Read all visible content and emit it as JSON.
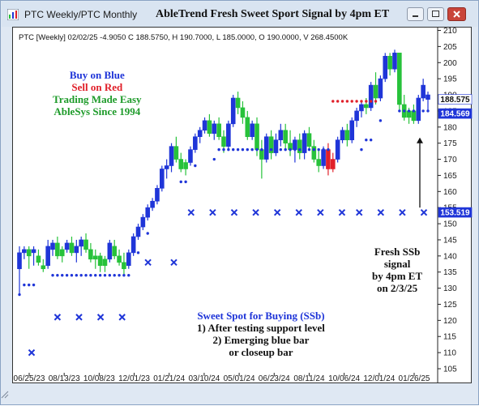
{
  "window": {
    "title": "PTC Weekly/PTC Monthly",
    "chart_title": "AbleTrend Fresh Sweet Sport Signal by 4pm ET"
  },
  "info_line": "PTC [Weekly] 02/02/25  -4.9050 C 188.5750, H 190.7000, L 185.0000, O 190.0000, V 268.4500K",
  "legend_note": {
    "line1": "Buy on Blue",
    "line2": "Sell on Red",
    "line3": "Trading Made Easy",
    "line4": "AbleSys Since 1994"
  },
  "ssb_note": {
    "line1": "Sweet Spot for Buying (SSb)",
    "line2": "1) After testing support level",
    "line3": "2) Emerging blue bar",
    "line4": "or closeup bar"
  },
  "fresh_note": {
    "line1": "Fresh SSb",
    "line2": "signal",
    "line3": "by 4pm ET",
    "line4": "on 2/3/25"
  },
  "price_tags": {
    "close": "188.575",
    "upper": "184.569",
    "stop": "153.519"
  },
  "colors": {
    "blue": "#1f35d8",
    "green": "#27c23a",
    "red": "#e0202a",
    "axis": "#222222"
  },
  "chart_data": {
    "type": "candlestick",
    "ylim": [
      105,
      210
    ],
    "yticks": [
      105,
      110,
      115,
      120,
      125,
      130,
      135,
      140,
      145,
      150,
      155,
      160,
      165,
      170,
      175,
      180,
      185,
      190,
      195,
      200,
      205,
      210
    ],
    "xticks": [
      "06/25/23",
      "08/13/23",
      "10/08/23",
      "12/01/23",
      "01/21/24",
      "03/10/24",
      "05/01/24",
      "06/23/24",
      "08/11/24",
      "10/06/24",
      "12/01/24",
      "01/26/25"
    ],
    "bars": [
      {
        "o": 136,
        "h": 143,
        "l": 128,
        "c": 141,
        "color": "blue"
      },
      {
        "o": 141,
        "h": 143,
        "l": 139,
        "c": 142,
        "color": "blue"
      },
      {
        "o": 140,
        "h": 143,
        "l": 136,
        "c": 142,
        "color": "green"
      },
      {
        "o": 141,
        "h": 143,
        "l": 137,
        "c": 142,
        "color": "blue"
      },
      {
        "o": 140,
        "h": 142,
        "l": 137,
        "c": 138,
        "color": "green"
      },
      {
        "o": 137,
        "h": 139,
        "l": 135,
        "c": 136,
        "color": "green"
      },
      {
        "o": 137,
        "h": 145,
        "l": 136,
        "c": 143,
        "color": "blue"
      },
      {
        "o": 142,
        "h": 145,
        "l": 140,
        "c": 144,
        "color": "blue"
      },
      {
        "o": 144,
        "h": 146,
        "l": 139,
        "c": 140,
        "color": "green"
      },
      {
        "o": 140,
        "h": 143,
        "l": 138,
        "c": 142,
        "color": "green"
      },
      {
        "o": 142,
        "h": 145,
        "l": 141,
        "c": 144,
        "color": "blue"
      },
      {
        "o": 144,
        "h": 146,
        "l": 140,
        "c": 141,
        "color": "green"
      },
      {
        "o": 141,
        "h": 145,
        "l": 138,
        "c": 143,
        "color": "blue"
      },
      {
        "o": 143,
        "h": 146,
        "l": 140,
        "c": 145,
        "color": "blue"
      },
      {
        "o": 145,
        "h": 147,
        "l": 141,
        "c": 142,
        "color": "green"
      },
      {
        "o": 142,
        "h": 144,
        "l": 138,
        "c": 139,
        "color": "green"
      },
      {
        "o": 139,
        "h": 142,
        "l": 136,
        "c": 140,
        "color": "green"
      },
      {
        "o": 140,
        "h": 141,
        "l": 135,
        "c": 137,
        "color": "green"
      },
      {
        "o": 137,
        "h": 140,
        "l": 135,
        "c": 139,
        "color": "green"
      },
      {
        "o": 139,
        "h": 145,
        "l": 138,
        "c": 144,
        "color": "blue"
      },
      {
        "o": 143,
        "h": 145,
        "l": 139,
        "c": 140,
        "color": "green"
      },
      {
        "o": 140,
        "h": 142,
        "l": 137,
        "c": 138,
        "color": "green"
      },
      {
        "o": 138,
        "h": 141,
        "l": 134,
        "c": 136,
        "color": "green"
      },
      {
        "o": 137,
        "h": 142,
        "l": 136,
        "c": 141,
        "color": "blue"
      },
      {
        "o": 141,
        "h": 147,
        "l": 140,
        "c": 146,
        "color": "blue"
      },
      {
        "o": 146,
        "h": 150,
        "l": 145,
        "c": 149,
        "color": "blue"
      },
      {
        "o": 149,
        "h": 153,
        "l": 148,
        "c": 152,
        "color": "blue"
      },
      {
        "o": 152,
        "h": 156,
        "l": 151,
        "c": 155,
        "color": "blue"
      },
      {
        "o": 155,
        "h": 158,
        "l": 154,
        "c": 157,
        "color": "blue"
      },
      {
        "o": 157,
        "h": 162,
        "l": 156,
        "c": 161,
        "color": "blue"
      },
      {
        "o": 161,
        "h": 168,
        "l": 160,
        "c": 167,
        "color": "blue"
      },
      {
        "o": 167,
        "h": 170,
        "l": 164,
        "c": 168,
        "color": "blue"
      },
      {
        "o": 168,
        "h": 175,
        "l": 166,
        "c": 174,
        "color": "blue"
      },
      {
        "o": 174,
        "h": 177,
        "l": 169,
        "c": 170,
        "color": "green"
      },
      {
        "o": 170,
        "h": 172,
        "l": 166,
        "c": 167,
        "color": "green"
      },
      {
        "o": 167,
        "h": 170,
        "l": 165,
        "c": 169,
        "color": "green"
      },
      {
        "o": 169,
        "h": 174,
        "l": 168,
        "c": 173,
        "color": "blue"
      },
      {
        "o": 173,
        "h": 178,
        "l": 172,
        "c": 177,
        "color": "blue"
      },
      {
        "o": 177,
        "h": 180,
        "l": 175,
        "c": 179,
        "color": "blue"
      },
      {
        "o": 179,
        "h": 183,
        "l": 178,
        "c": 182,
        "color": "blue"
      },
      {
        "o": 182,
        "h": 184,
        "l": 177,
        "c": 178,
        "color": "green"
      },
      {
        "o": 178,
        "h": 182,
        "l": 176,
        "c": 181,
        "color": "blue"
      },
      {
        "o": 181,
        "h": 183,
        "l": 176,
        "c": 177,
        "color": "green"
      },
      {
        "o": 177,
        "h": 179,
        "l": 172,
        "c": 174,
        "color": "green"
      },
      {
        "o": 174,
        "h": 182,
        "l": 173,
        "c": 181,
        "color": "blue"
      },
      {
        "o": 181,
        "h": 190,
        "l": 180,
        "c": 189,
        "color": "blue"
      },
      {
        "o": 189,
        "h": 191,
        "l": 184,
        "c": 186,
        "color": "green"
      },
      {
        "o": 186,
        "h": 188,
        "l": 181,
        "c": 183,
        "color": "green"
      },
      {
        "o": 183,
        "h": 185,
        "l": 176,
        "c": 177,
        "color": "green"
      },
      {
        "o": 177,
        "h": 182,
        "l": 176,
        "c": 181,
        "color": "blue"
      },
      {
        "o": 181,
        "h": 183,
        "l": 171,
        "c": 173,
        "color": "green"
      },
      {
        "o": 173,
        "h": 176,
        "l": 164,
        "c": 170,
        "color": "green"
      },
      {
        "o": 170,
        "h": 178,
        "l": 169,
        "c": 177,
        "color": "blue"
      },
      {
        "o": 177,
        "h": 179,
        "l": 170,
        "c": 172,
        "color": "green"
      },
      {
        "o": 172,
        "h": 178,
        "l": 171,
        "c": 176,
        "color": "blue"
      },
      {
        "o": 176,
        "h": 181,
        "l": 174,
        "c": 179,
        "color": "blue"
      },
      {
        "o": 179,
        "h": 181,
        "l": 173,
        "c": 175,
        "color": "green"
      },
      {
        "o": 175,
        "h": 179,
        "l": 171,
        "c": 173,
        "color": "green"
      },
      {
        "o": 173,
        "h": 177,
        "l": 169,
        "c": 176,
        "color": "blue"
      },
      {
        "o": 176,
        "h": 178,
        "l": 170,
        "c": 172,
        "color": "green"
      },
      {
        "o": 172,
        "h": 179,
        "l": 170,
        "c": 178,
        "color": "blue"
      },
      {
        "o": 178,
        "h": 180,
        "l": 173,
        "c": 174,
        "color": "green"
      },
      {
        "o": 174,
        "h": 176,
        "l": 169,
        "c": 170,
        "color": "green"
      },
      {
        "o": 170,
        "h": 173,
        "l": 166,
        "c": 168,
        "color": "green"
      },
      {
        "o": 168,
        "h": 174,
        "l": 167,
        "c": 173,
        "color": "blue"
      },
      {
        "o": 173,
        "h": 175,
        "l": 165,
        "c": 167,
        "color": "red"
      },
      {
        "o": 167,
        "h": 172,
        "l": 166,
        "c": 170,
        "color": "red"
      },
      {
        "o": 170,
        "h": 177,
        "l": 169,
        "c": 176,
        "color": "blue"
      },
      {
        "o": 176,
        "h": 180,
        "l": 175,
        "c": 179,
        "color": "blue"
      },
      {
        "o": 179,
        "h": 181,
        "l": 174,
        "c": 176,
        "color": "green"
      },
      {
        "o": 176,
        "h": 183,
        "l": 175,
        "c": 182,
        "color": "blue"
      },
      {
        "o": 182,
        "h": 186,
        "l": 180,
        "c": 185,
        "color": "blue"
      },
      {
        "o": 185,
        "h": 188,
        "l": 183,
        "c": 187,
        "color": "blue"
      },
      {
        "o": 187,
        "h": 189,
        "l": 184,
        "c": 186,
        "color": "green"
      },
      {
        "o": 186,
        "h": 194,
        "l": 185,
        "c": 193,
        "color": "blue"
      },
      {
        "o": 193,
        "h": 197,
        "l": 187,
        "c": 189,
        "color": "green"
      },
      {
        "o": 189,
        "h": 196,
        "l": 188,
        "c": 195,
        "color": "blue"
      },
      {
        "o": 195,
        "h": 203,
        "l": 194,
        "c": 202,
        "color": "blue"
      },
      {
        "o": 202,
        "h": 203,
        "l": 196,
        "c": 198,
        "color": "green"
      },
      {
        "o": 198,
        "h": 204,
        "l": 197,
        "c": 203,
        "color": "blue"
      },
      {
        "o": 203,
        "h": 203,
        "l": 185,
        "c": 187,
        "color": "green"
      },
      {
        "o": 187,
        "h": 190,
        "l": 182,
        "c": 183,
        "color": "green"
      },
      {
        "o": 183,
        "h": 186,
        "l": 181,
        "c": 185,
        "color": "green"
      },
      {
        "o": 185,
        "h": 187,
        "l": 181,
        "c": 182,
        "color": "green"
      },
      {
        "o": 182,
        "h": 190,
        "l": 181,
        "c": 189,
        "color": "blue"
      },
      {
        "o": 189,
        "h": 195,
        "l": 188,
        "c": 193,
        "color": "blue"
      },
      {
        "o": 190,
        "h": 191,
        "l": 185,
        "c": 188.575,
        "color": "blue"
      }
    ],
    "support_dots": [
      {
        "i": 0,
        "v": 128
      },
      {
        "i": 1,
        "v": 131
      },
      {
        "i": 2,
        "v": 131
      },
      {
        "i": 3,
        "v": 131
      },
      {
        "i": 7,
        "v": 134
      },
      {
        "i": 8,
        "v": 134
      },
      {
        "i": 9,
        "v": 134
      },
      {
        "i": 10,
        "v": 134
      },
      {
        "i": 11,
        "v": 134
      },
      {
        "i": 12,
        "v": 134
      },
      {
        "i": 13,
        "v": 134
      },
      {
        "i": 14,
        "v": 134
      },
      {
        "i": 15,
        "v": 134
      },
      {
        "i": 16,
        "v": 134
      },
      {
        "i": 17,
        "v": 134
      },
      {
        "i": 18,
        "v": 134
      },
      {
        "i": 19,
        "v": 134
      },
      {
        "i": 20,
        "v": 134
      },
      {
        "i": 21,
        "v": 134
      },
      {
        "i": 22,
        "v": 134
      },
      {
        "i": 23,
        "v": 134
      },
      {
        "i": 25,
        "v": 141
      },
      {
        "i": 27,
        "v": 147
      },
      {
        "i": 34,
        "v": 163
      },
      {
        "i": 35,
        "v": 163
      },
      {
        "i": 37,
        "v": 168
      },
      {
        "i": 41,
        "v": 170
      },
      {
        "i": 42,
        "v": 173
      },
      {
        "i": 43,
        "v": 173
      },
      {
        "i": 44,
        "v": 173
      },
      {
        "i": 45,
        "v": 173
      },
      {
        "i": 46,
        "v": 173
      },
      {
        "i": 47,
        "v": 173
      },
      {
        "i": 48,
        "v": 173
      },
      {
        "i": 49,
        "v": 173
      },
      {
        "i": 50,
        "v": 173
      },
      {
        "i": 51,
        "v": 173
      },
      {
        "i": 52,
        "v": 173
      },
      {
        "i": 53,
        "v": 173
      },
      {
        "i": 54,
        "v": 173
      },
      {
        "i": 55,
        "v": 173
      },
      {
        "i": 56,
        "v": 173
      },
      {
        "i": 57,
        "v": 173
      },
      {
        "i": 58,
        "v": 173
      },
      {
        "i": 59,
        "v": 173
      },
      {
        "i": 60,
        "v": 173
      },
      {
        "i": 61,
        "v": 173
      },
      {
        "i": 62,
        "v": 173
      },
      {
        "i": 63,
        "v": 173
      },
      {
        "i": 64,
        "v": 173
      },
      {
        "i": 65,
        "v": 173
      },
      {
        "i": 72,
        "v": 173
      },
      {
        "i": 73,
        "v": 176
      },
      {
        "i": 74,
        "v": 176
      },
      {
        "i": 76,
        "v": 182
      },
      {
        "i": 80,
        "v": 185
      },
      {
        "i": 81,
        "v": 185
      },
      {
        "i": 82,
        "v": 185
      },
      {
        "i": 83,
        "v": 185
      },
      {
        "i": 84,
        "v": 185
      },
      {
        "i": 85,
        "v": 185
      },
      {
        "i": 86,
        "v": 185
      }
    ],
    "resistance_dots": [
      {
        "i": 66,
        "v": 188
      },
      {
        "i": 67,
        "v": 188
      },
      {
        "i": 68,
        "v": 188
      },
      {
        "i": 69,
        "v": 188
      },
      {
        "i": 70,
        "v": 188
      },
      {
        "i": 71,
        "v": 188
      },
      {
        "i": 72,
        "v": 188
      },
      {
        "i": 73,
        "v": 188
      },
      {
        "i": 74,
        "v": 188
      },
      {
        "i": 75,
        "v": 188
      }
    ],
    "stop_marks": [
      {
        "i": 4,
        "v": 110
      },
      {
        "i": 10,
        "v": 121
      },
      {
        "i": 15,
        "v": 121
      },
      {
        "i": 20,
        "v": 121
      },
      {
        "i": 25,
        "v": 121
      },
      {
        "i": 31,
        "v": 138
      },
      {
        "i": 37,
        "v": 138
      },
      {
        "i": 41,
        "v": 153.5
      },
      {
        "i": 46,
        "v": 153.5
      },
      {
        "i": 51,
        "v": 153.5
      },
      {
        "i": 56,
        "v": 153.5
      },
      {
        "i": 61,
        "v": 153.5
      },
      {
        "i": 66,
        "v": 153.5
      },
      {
        "i": 71,
        "v": 153.5
      },
      {
        "i": 76,
        "v": 153.5
      },
      {
        "i": 80,
        "v": 153.5
      },
      {
        "i": 85,
        "v": 153.5
      },
      {
        "i": 90,
        "v": 153.5
      },
      {
        "i": 95,
        "v": 153.5
      }
    ]
  }
}
